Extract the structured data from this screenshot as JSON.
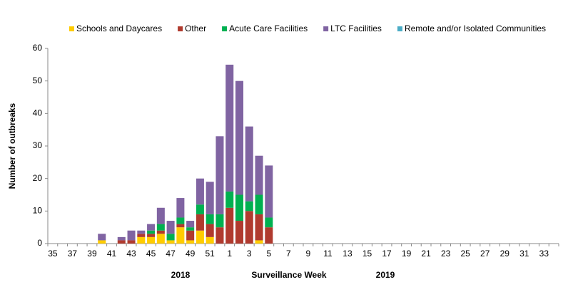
{
  "chart_data": {
    "type": "stacked_bar",
    "y_label": "Number of outbreaks",
    "x_label": "Surveillance Week",
    "year_labels": [
      "2018",
      "2019"
    ],
    "categories": [
      "35",
      null,
      "37",
      null,
      "39",
      null,
      "41",
      null,
      "43",
      null,
      "45",
      null,
      "47",
      null,
      "49",
      null,
      "51",
      null,
      "1",
      null,
      "3",
      null,
      "5",
      null,
      "7",
      null,
      "9",
      null,
      "11",
      null,
      "13",
      null,
      "15",
      null,
      "17",
      null,
      "19",
      null,
      "21",
      null,
      "23",
      null,
      "25",
      null,
      "27",
      null,
      "29",
      null,
      "31",
      null,
      "33",
      null
    ],
    "series": [
      {
        "name": "Schools and Daycares",
        "color": "#ffcc00",
        "values": [
          0,
          0,
          0,
          0,
          0,
          1,
          0,
          0,
          0,
          2,
          2,
          3,
          1,
          5,
          1,
          4,
          2,
          0,
          0,
          0,
          0,
          1,
          0,
          0,
          0,
          0,
          0,
          0,
          0,
          0,
          0,
          0,
          0,
          0,
          0,
          0,
          0,
          0,
          0,
          0,
          0,
          0,
          0,
          0,
          0,
          0,
          0,
          0,
          0,
          0,
          0,
          0
        ]
      },
      {
        "name": "Other",
        "color": "#b03a2e",
        "values": [
          0,
          0,
          0,
          0,
          0,
          0,
          0,
          1,
          1,
          1,
          1,
          1,
          0,
          1,
          3,
          5,
          4,
          5,
          11,
          7,
          10,
          8,
          5,
          0,
          0,
          0,
          0,
          0,
          0,
          0,
          0,
          0,
          0,
          0,
          0,
          0,
          0,
          0,
          0,
          0,
          0,
          0,
          0,
          0,
          0,
          0,
          0,
          0,
          0,
          0,
          0,
          0
        ]
      },
      {
        "name": "Acute Care Facilities",
        "color": "#00b050",
        "values": [
          0,
          0,
          0,
          0,
          0,
          0,
          0,
          0,
          0,
          0,
          1,
          2,
          2,
          2,
          1,
          3,
          3,
          4,
          5,
          8,
          3,
          6,
          3,
          0,
          0,
          0,
          0,
          0,
          0,
          0,
          0,
          0,
          0,
          0,
          0,
          0,
          0,
          0,
          0,
          0,
          0,
          0,
          0,
          0,
          0,
          0,
          0,
          0,
          0,
          0,
          0,
          0
        ]
      },
      {
        "name": "LTC Facilities",
        "color": "#8064a2",
        "values": [
          0,
          0,
          0,
          0,
          0,
          2,
          0,
          1,
          3,
          1,
          2,
          5,
          4,
          6,
          2,
          8,
          10,
          24,
          39,
          35,
          23,
          12,
          16,
          0,
          0,
          0,
          0,
          0,
          0,
          0,
          0,
          0,
          0,
          0,
          0,
          0,
          0,
          0,
          0,
          0,
          0,
          0,
          0,
          0,
          0,
          0,
          0,
          0,
          0,
          0,
          0,
          0
        ]
      },
      {
        "name": "Remote and/or Isolated Communities",
        "color": "#4bacc6",
        "values": [
          0,
          0,
          0,
          0,
          0,
          0,
          0,
          0,
          0,
          0,
          0,
          0,
          0,
          0,
          0,
          0,
          0,
          0,
          0,
          0,
          0,
          0,
          0,
          0,
          0,
          0,
          0,
          0,
          0,
          0,
          0,
          0,
          0,
          0,
          0,
          0,
          0,
          0,
          0,
          0,
          0,
          0,
          0,
          0,
          0,
          0,
          0,
          0,
          0,
          0,
          0,
          0
        ]
      }
    ],
    "ylim": [
      0,
      60
    ],
    "yticks": [
      0,
      10,
      20,
      30,
      40,
      50,
      60
    ]
  }
}
